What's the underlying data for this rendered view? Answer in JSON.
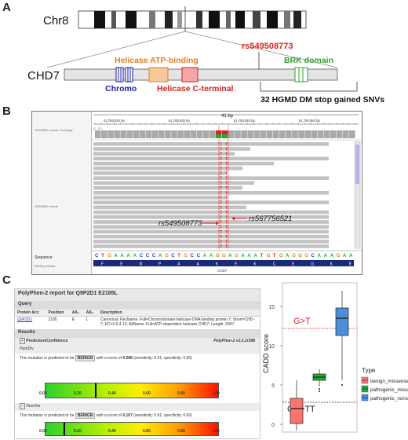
{
  "panels": {
    "a": "A",
    "b": "B",
    "c": "C"
  },
  "panel_a": {
    "chrom_label": "Chr8",
    "gene_label": "CHD7",
    "snp_label": "rs549508773",
    "domain_helicase_atp": "Helicase ATP-binding",
    "domain_brk": "BRK domain",
    "domain_chromo": "Chromo",
    "domain_helicase_c": "Helicase C-terminal",
    "hgmd_label": "32 HGMD DM stop gained SNVs",
    "colors": {
      "snp": "#e02020",
      "helicase_atp": "#e67e22",
      "brk": "#33a02c",
      "chromo": "#1a1aaa",
      "helicase_c": "#d42020"
    }
  },
  "panel_b": {
    "span": "41 bp",
    "positions": [
      "61,765,820 bp",
      "61,765,830 bp",
      "61,765,840 bp",
      "61,765,850 bp"
    ],
    "track_coverage": "HG02861 exome Coverage",
    "track_reads": "HG02861 exome",
    "range_label": "[0 - 87]",
    "track_sequence": "Sequence",
    "track_refseq": "RefSeq Genes",
    "snp1": "rs549508773",
    "snp2": "rs567756521",
    "sequence": "CTGAAAACCCAGCTGCCAAGGAGAAATGTGAGGGCAAAGAA",
    "aminoacids": [
      "F",
      "E",
      "N",
      "P",
      "A",
      "A",
      "K",
      "E",
      "K",
      "C",
      "E",
      "G",
      "K",
      "E"
    ],
    "gene": "CHD7"
  },
  "panel_c": {
    "polyphen": {
      "title": "PolyPhen-2 report for Q9P2D1 E2185L",
      "query_label": "Query",
      "table_headers": [
        "Protein Acc",
        "Position",
        "AA₁",
        "AA₂",
        "Description"
      ],
      "row": {
        "acc": "Q9P2D1",
        "position": "2185",
        "aa1": "E",
        "aa2": "L",
        "description": "Canonical; RecName: Full=Chromodomain-helicase-DNA-binding protein 7; Short=CHD-7; EC=3.6.4.12; AltName: Full=ATP-dependent helicase CHD7; Length: 2997"
      },
      "results_label": "Results",
      "pred_header": "Prediction/Confidence",
      "version": "PolyPhen-2 v2.2.2r398",
      "humdiv_label": "HumDiv",
      "humdiv_text1": "This mutation is predicted to be",
      "humdiv_benign": "BENIGN",
      "humdiv_text2": "with a score of",
      "humdiv_score": "0.288",
      "humdiv_sens": "(sensitivity: 0.91; specificity: 0.89)",
      "humvar_label": "HumVar",
      "humvar_text1": "This mutation is predicted to be",
      "humvar_benign": "BENIGN",
      "humvar_text2": "with a score of",
      "humvar_score": "0.107",
      "humvar_sens": "(sensitivity: 0.91; specificity: 0.69)",
      "ticks": [
        "0.00",
        "0.20",
        "0.40",
        "0.60",
        "0.80",
        "1.00"
      ],
      "humdiv_marker": 0.288,
      "humvar_marker": 0.107
    }
  },
  "chart_data": {
    "type": "box",
    "ylabel": "CADD score",
    "ylim": [
      -1,
      18
    ],
    "yticks": [
      0,
      5,
      10,
      15
    ],
    "legend_title": "Type",
    "legend_position": "right",
    "series": [
      {
        "name": "benign_missense",
        "color": "#f8766d",
        "whisker_low": -0.8,
        "q1": 0.1,
        "median": 2.0,
        "q3": 3.3,
        "whisker_high": 5.6,
        "outliers": []
      },
      {
        "name": "pathogenic_missense",
        "color": "#1aaf3a",
        "whisker_low": 4.8,
        "q1": 5.6,
        "median": 6.0,
        "q3": 6.4,
        "whisker_high": 7.0,
        "outliers": [
          4.2,
          4.5
        ]
      },
      {
        "name": "pathogenic_nonsense",
        "color": "#4a8fd8",
        "whisker_low": 5.6,
        "q1": 11.3,
        "median": 13.5,
        "q3": 14.8,
        "whisker_high": 17.0,
        "outliers": [
          5.0
        ]
      }
    ],
    "annotations": [
      {
        "label": "G>T",
        "y": 12.2,
        "color": "#e02020"
      },
      {
        "label": "GA>TT",
        "y": 2.8,
        "color": "#222222"
      }
    ]
  }
}
